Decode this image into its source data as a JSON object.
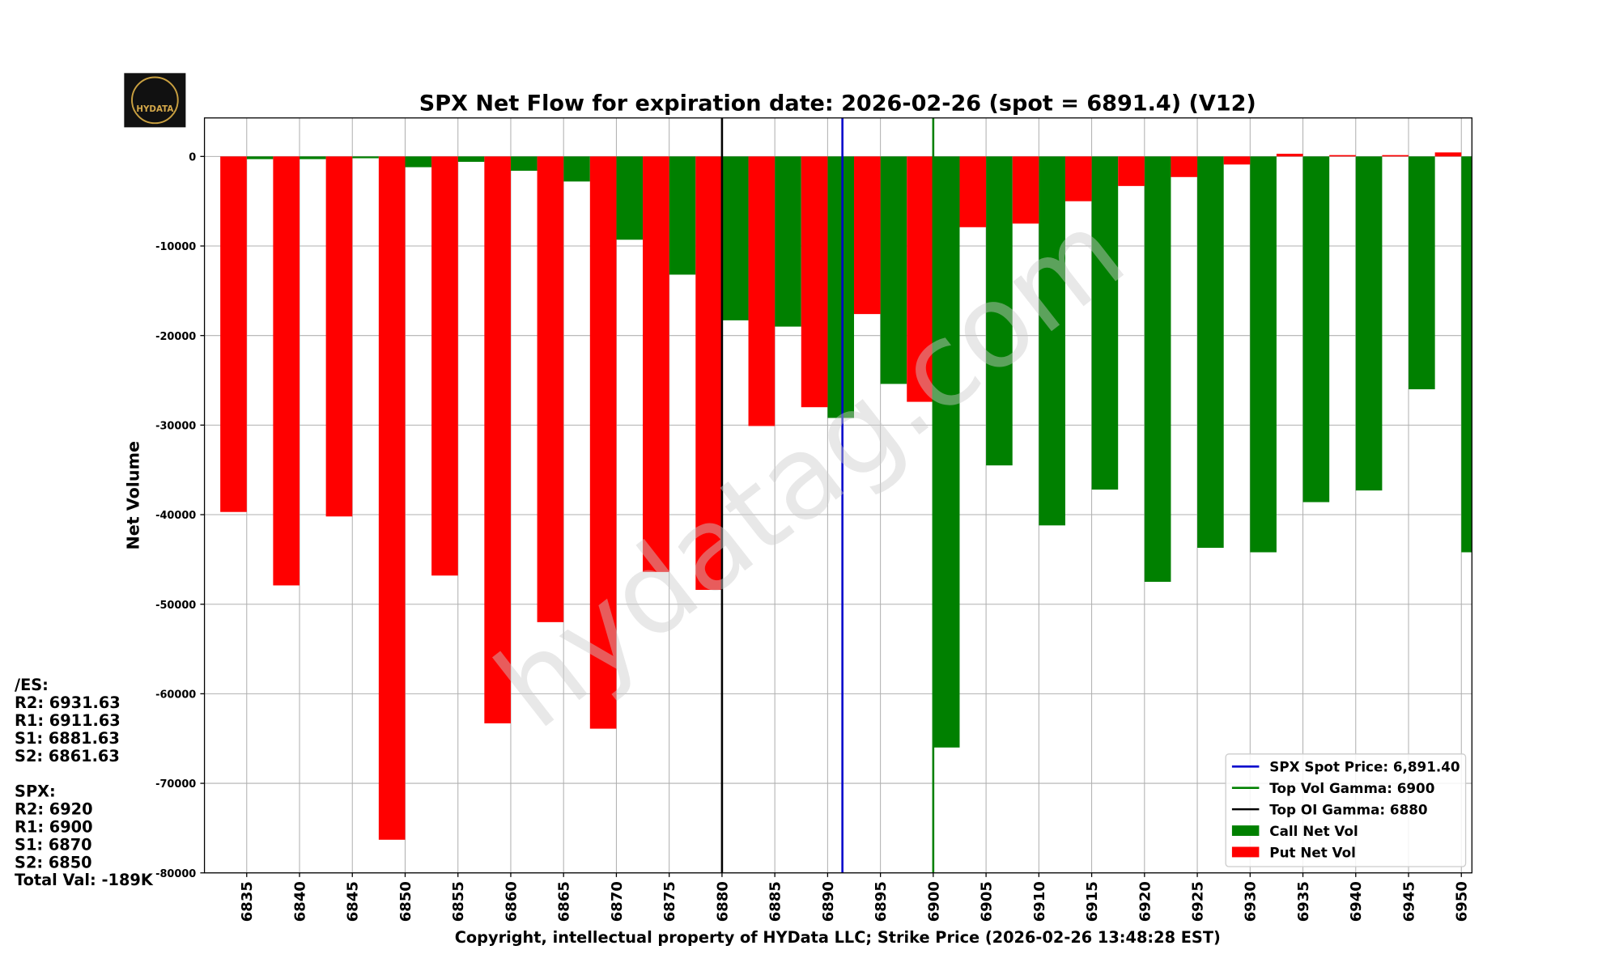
{
  "chart_data": {
    "type": "bar",
    "title": "SPX Net Flow for expiration date: 2026-02-26 (spot = 6891.4) (V12)",
    "x_label": "Copyright, intellectual property of HYData LLC; Strike Price (2026-02-26 13:48:28 EST)",
    "y_label": "Net Volume",
    "logo_text": "HYDATA",
    "watermark": "hydatag.com",
    "x": [
      6835,
      6840,
      6845,
      6850,
      6855,
      6860,
      6865,
      6870,
      6875,
      6880,
      6885,
      6890,
      6895,
      6900,
      6905,
      6910,
      6915,
      6920,
      6925,
      6930,
      6935,
      6940,
      6945,
      6950
    ],
    "series": [
      {
        "name": "Call Net Vol",
        "color": "#008000",
        "side": "right",
        "values": [
          -300,
          -300,
          -200,
          -1200,
          -600,
          -1600,
          -2800,
          -9300,
          -13200,
          -18300,
          -19000,
          -29200,
          -25400,
          -66000,
          -34500,
          -41200,
          -37200,
          -47500,
          -43700,
          -44200,
          -38600,
          -37300,
          -26000,
          -44200
        ]
      },
      {
        "name": "Put Net Vol",
        "color": "#ff0000",
        "side": "left",
        "values": [
          -39700,
          -47900,
          -40200,
          -76300,
          -46800,
          -63300,
          -52000,
          -63900,
          -46400,
          -48400,
          -30100,
          -28000,
          -17600,
          -27400,
          -7900,
          -7500,
          -5000,
          -3300,
          -2300,
          -900,
          300,
          150,
          150,
          450
        ]
      }
    ],
    "bar_width": 2.5,
    "reference_lines": [
      {
        "label": "SPX Spot Price: 6,891.40",
        "value": 6891.4,
        "color": "#0000cc"
      },
      {
        "label": "Top Vol Gamma: 6900",
        "value": 6900,
        "color": "#008000"
      },
      {
        "label": "Top OI Gamma: 6880",
        "value": 6880,
        "color": "#000000"
      }
    ],
    "xlim": [
      6831,
      6951
    ],
    "ylim": [
      -80000,
      4300
    ],
    "xticks": [
      6835,
      6840,
      6845,
      6850,
      6855,
      6860,
      6865,
      6870,
      6875,
      6880,
      6885,
      6890,
      6895,
      6900,
      6905,
      6910,
      6915,
      6920,
      6925,
      6930,
      6935,
      6940,
      6945,
      6950
    ],
    "yticks": [
      0,
      -10000,
      -20000,
      -30000,
      -40000,
      -50000,
      -60000,
      -70000,
      -80000
    ],
    "grid": true,
    "legend": "lower right",
    "annotations": [
      [
        "/ES:",
        "R2: 6931.63",
        "R1: 6911.63",
        "S1: 6881.63",
        "S2: 6861.63"
      ],
      [
        "SPX:",
        "R2: 6920",
        "R1: 6900",
        "S1: 6870",
        "S2: 6850",
        "Total Val: -189K"
      ]
    ]
  }
}
